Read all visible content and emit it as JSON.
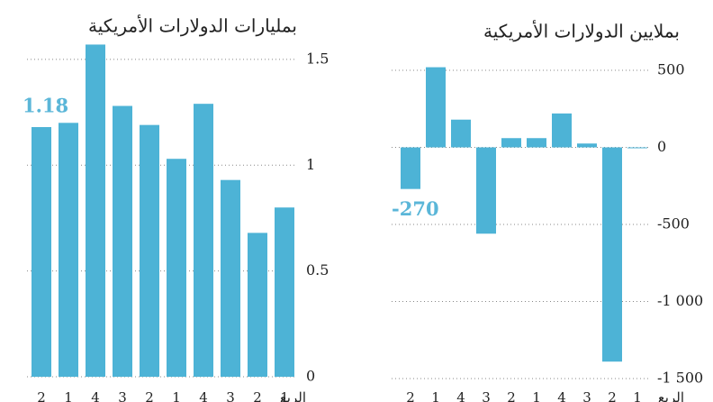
{
  "chart_data": [
    {
      "type": "bar",
      "subtitle": "بمليارات الدولارات الأمريكية",
      "categories": [
        "2",
        "1",
        "4",
        "3",
        "2",
        "1",
        "4",
        "3",
        "2",
        "1"
      ],
      "xlabel": "الربع",
      "values": [
        1.18,
        1.2,
        1.57,
        1.28,
        1.19,
        1.03,
        1.29,
        0.93,
        0.68,
        0.8
      ],
      "value_labels": [
        "1.18",
        null,
        null,
        null,
        null,
        null,
        null,
        null,
        null,
        null
      ],
      "color": "#4db3d6",
      "label_color": "#5ab6d8",
      "ylim": [
        0,
        1.6
      ],
      "yticks": [
        0,
        0.5,
        1,
        1.5
      ],
      "grid": true
    },
    {
      "type": "bar",
      "subtitle": "بملايين الدولارات الأمريكية",
      "categories": [
        "2",
        "1",
        "4",
        "3",
        "2",
        "1",
        "4",
        "3",
        "2",
        "1"
      ],
      "xlabel": "الربع",
      "values": [
        -270,
        520,
        180,
        -560,
        60,
        60,
        220,
        25,
        -1390,
        -5
      ],
      "value_labels": [
        "-270",
        null,
        null,
        null,
        null,
        null,
        null,
        null,
        null,
        null
      ],
      "color": "#4db3d6",
      "label_color": "#5ab6d8",
      "ylim": [
        -1500,
        600
      ],
      "yticks": [
        {
          "value": -1500,
          "label": "-1 500"
        },
        {
          "value": -1000,
          "label": "-1 000"
        },
        -500,
        0,
        500
      ],
      "grid": true
    }
  ]
}
